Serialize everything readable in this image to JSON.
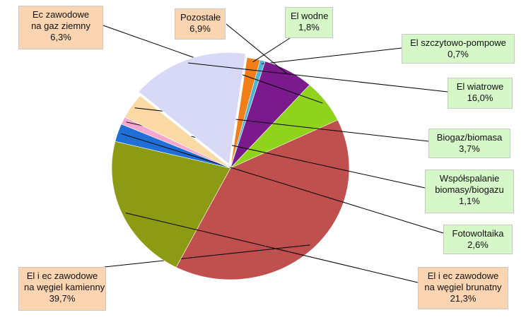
{
  "chart_data": {
    "type": "pie",
    "title": "",
    "slices": [
      {
        "name": "El wodne",
        "value": 1.8,
        "label_lines": [
          "El wodne",
          "1,8%"
        ],
        "color": "#f07f1a",
        "box": "green"
      },
      {
        "name": "El szczytowo-pompowe",
        "value": 0.7,
        "label_lines": [
          "El szczytowo-pompowe",
          "0,7%"
        ],
        "color": "#4eb3d6",
        "box": "green"
      },
      {
        "name": "Pozostałe",
        "value": 6.9,
        "label_lines": [
          "Pozostałe",
          "6,9%"
        ],
        "color": "#7a1a8c",
        "box": "orange"
      },
      {
        "name": "Ec zawodowe na gaz ziemny",
        "value": 6.3,
        "label_lines": [
          "Ec zawodowe",
          "na gaz ziemny",
          "6,3%"
        ],
        "color": "#8fd31c",
        "box": "orange"
      },
      {
        "name": "El i ec zawodowe na węgiel kamienny",
        "value": 39.7,
        "label_lines": [
          "El i ec zawodowe",
          "na węgiel kamienny",
          "39,7%"
        ],
        "color": "#c0504d",
        "box": "orange"
      },
      {
        "name": "El i ec zawodowe na węgiel brunatny",
        "value": 21.3,
        "label_lines": [
          "El  i ec zawodowe",
          "na węgiel brunatny",
          "21,3%"
        ],
        "color": "#8c9a14",
        "box": "orange"
      },
      {
        "name": "Fotowoltaika",
        "value": 2.6,
        "label_lines": [
          "Fotowoltaika",
          "2,6%"
        ],
        "color": "#1f6fd6",
        "box": "green"
      },
      {
        "name": "Współspalanie biomasy/biogazu",
        "value": 1.1,
        "label_lines": [
          "Współspalanie",
          "biomasy/biogazu",
          "1,1%"
        ],
        "color": "#f5a8cf",
        "box": "green"
      },
      {
        "name": "Biogaz/biomasa",
        "value": 3.7,
        "label_lines": [
          "Biogaz/biomasa",
          "3,7%"
        ],
        "color": "#fbd9a4",
        "box": "green"
      },
      {
        "name": "El wiatrowe",
        "value": 16.0,
        "label_lines": [
          "El wiatrowe",
          "16,0%"
        ],
        "color": "#d7d9f6",
        "box": "green"
      }
    ],
    "start_direction": "12 o'clock",
    "direction": "clockwise",
    "legend": "none"
  },
  "colors": {
    "label_box_orange": "#fbd5b2",
    "label_box_green": "#d6f7c8",
    "leader_line": "#000000"
  }
}
